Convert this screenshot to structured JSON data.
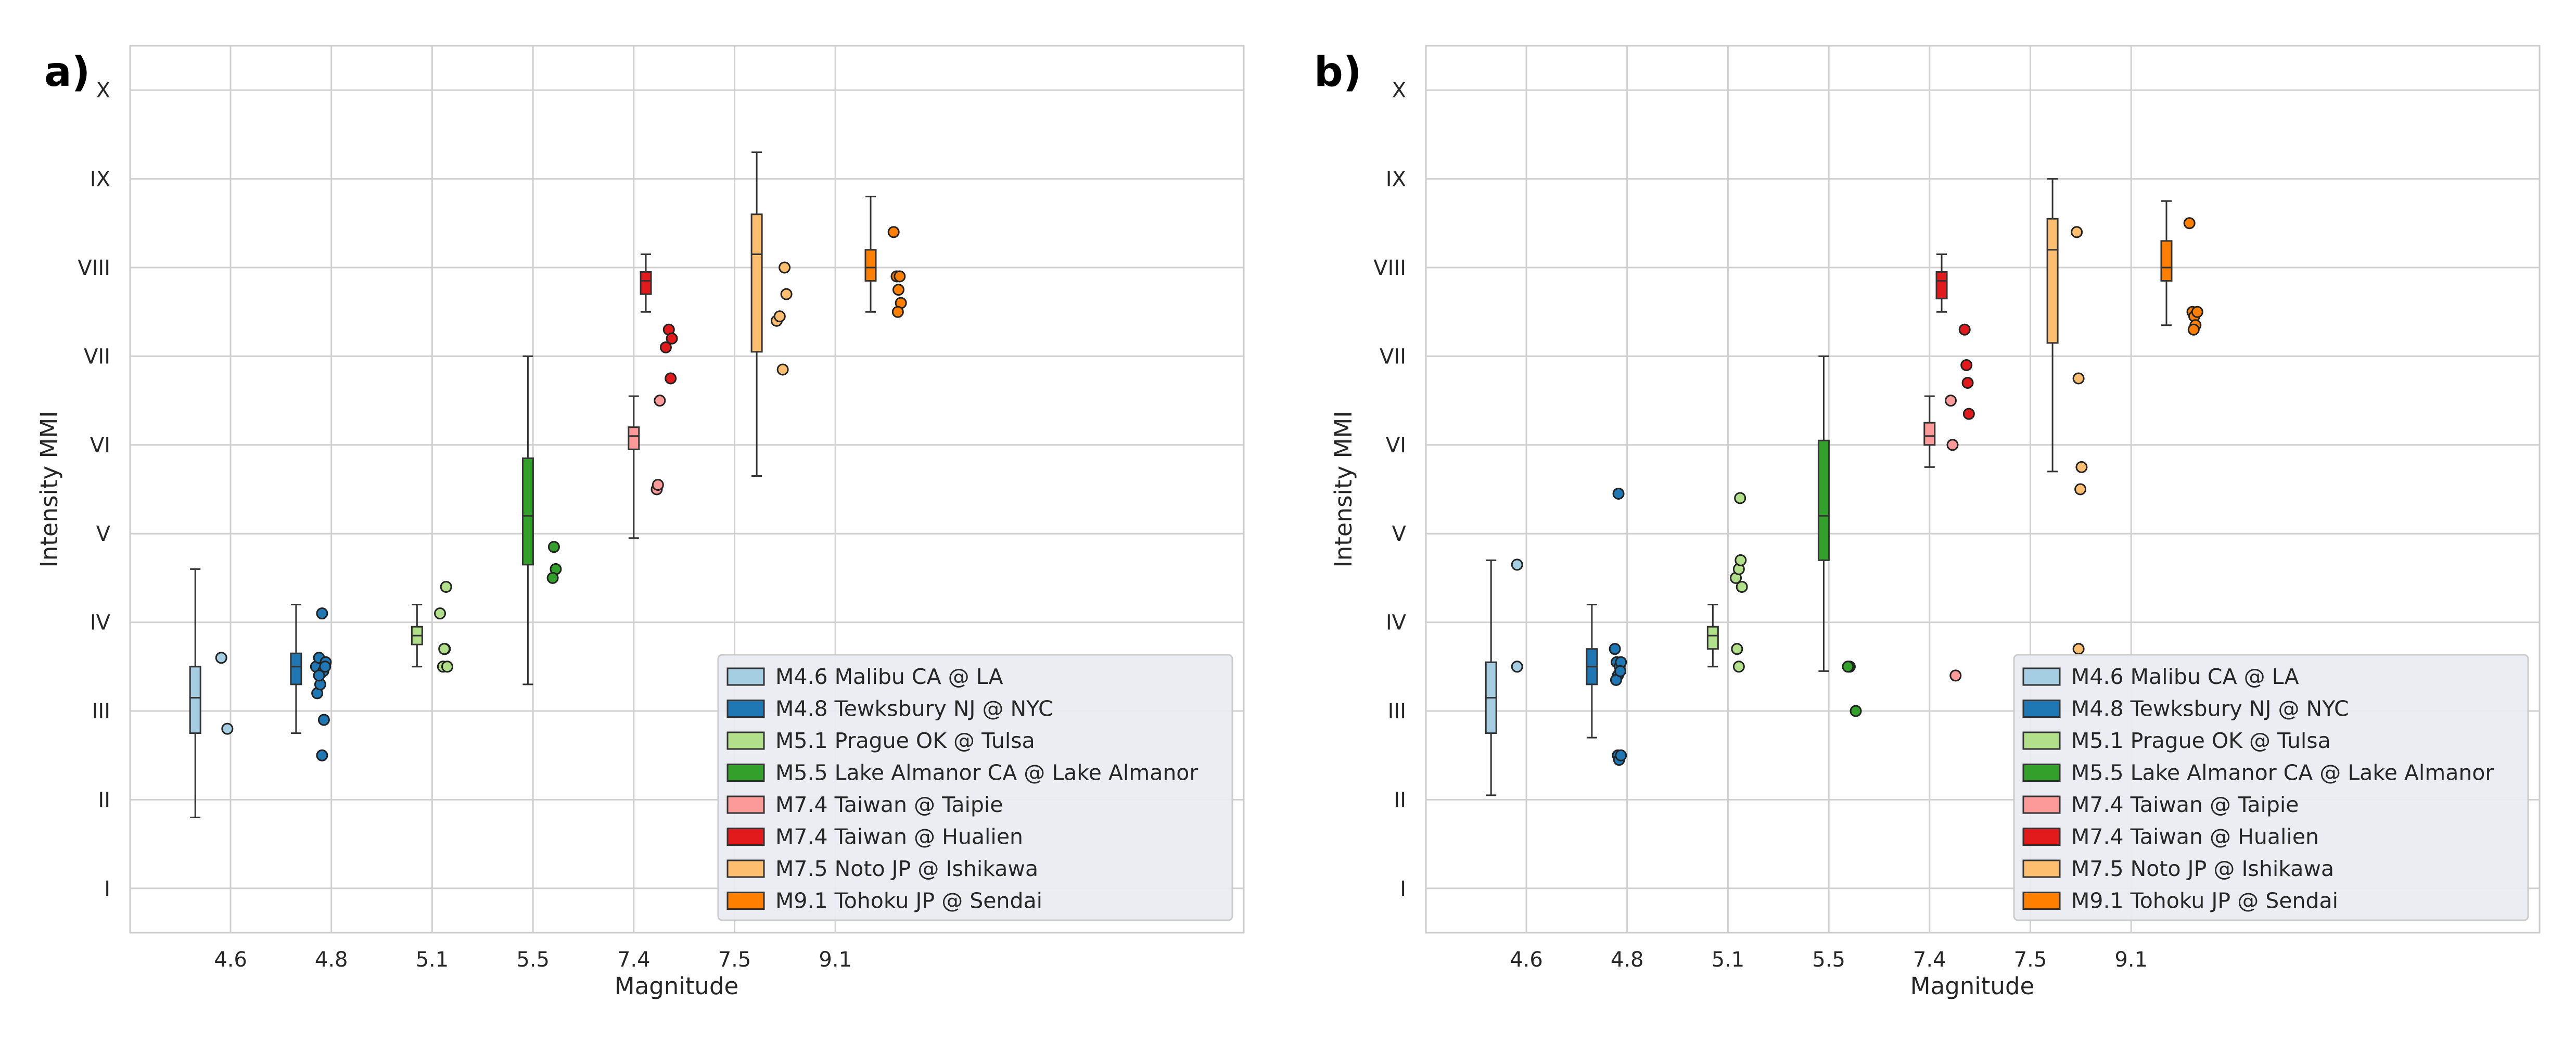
{
  "chart_data": [
    {
      "type": "box+strip",
      "panel_label": "a)",
      "xlabel": "Magnitude",
      "ylabel": "Intensity MMI",
      "categories": [
        "4.6",
        "4.8",
        "5.1",
        "5.5",
        "7.4",
        "7.5",
        "9.1"
      ],
      "ylim": [
        0.5,
        10.5
      ],
      "y_ticks": [
        "I",
        "II",
        "III",
        "IV",
        "V",
        "VI",
        "VII",
        "VIII",
        "IX",
        "X"
      ],
      "grid": true,
      "legend_position": "lower-right",
      "series": [
        {
          "name": "M4.6 Malibu CA @ LA",
          "color": "#a6cee3",
          "category": "4.6",
          "box": {
            "min": 1.8,
            "q1": 2.75,
            "median": 3.15,
            "q3": 3.5,
            "max": 4.6
          },
          "points": [
            [
              0.0,
              3.6
            ],
            [
              0.1,
              2.8
            ]
          ]
        },
        {
          "name": "M4.8 Tewksbury NJ @ NYC",
          "color": "#1f78b4",
          "category": "4.8",
          "box": {
            "min": 2.75,
            "q1": 3.3,
            "median": 3.5,
            "q3": 3.65,
            "max": 4.2
          },
          "points": [
            [
              -0.1,
              3.5
            ],
            [
              -0.05,
              3.6
            ],
            [
              -0.08,
              3.2
            ],
            [
              -0.03,
              3.3
            ],
            [
              0.0,
              4.1
            ],
            [
              0.02,
              3.45
            ],
            [
              0.06,
              3.55
            ],
            [
              0.03,
              2.9
            ],
            [
              0.0,
              2.5
            ],
            [
              -0.05,
              3.4
            ],
            [
              0.05,
              3.5
            ]
          ]
        },
        {
          "name": "M5.1 Prague OK @ Tulsa",
          "color": "#b2df8a",
          "category": "5.1",
          "box": {
            "min": 3.5,
            "q1": 3.75,
            "median": 3.85,
            "q3": 3.95,
            "max": 4.2
          },
          "points": [
            [
              -0.05,
              4.1
            ],
            [
              0.0,
              3.5
            ],
            [
              0.03,
              3.7
            ],
            [
              0.05,
              4.4
            ],
            [
              0.07,
              3.5
            ],
            [
              0.02,
              3.7
            ]
          ]
        },
        {
          "name": "M5.5 Lake Almanor CA @ Lake Almanor",
          "color": "#33a02c",
          "category": "5.5",
          "box": {
            "min": 3.3,
            "q1": 4.65,
            "median": 5.2,
            "q3": 5.85,
            "max": 7.0
          },
          "points": [
            [
              0.0,
              4.85
            ],
            [
              0.03,
              4.6
            ],
            [
              -0.02,
              4.5
            ]
          ]
        },
        {
          "name": "M7.4 Taiwan @ Taipie",
          "color": "#fb9a99",
          "category": "7.4",
          "box": {
            "min": 4.95,
            "q1": 5.95,
            "median": 6.1,
            "q3": 6.2,
            "max": 6.55
          },
          "points": [
            [
              -0.05,
              5.5
            ],
            [
              0.0,
              6.5
            ],
            [
              -0.03,
              5.55
            ]
          ]
        },
        {
          "name": "M7.4 Taiwan @ Hualien",
          "color": "#e31a1c",
          "category": "7.4",
          "box": {
            "min": 7.5,
            "q1": 7.7,
            "median": 7.85,
            "q3": 7.95,
            "max": 8.15
          },
          "points": [
            [
              -0.1,
              7.1
            ],
            [
              -0.05,
              7.3
            ],
            [
              -0.02,
              6.75
            ],
            [
              0.0,
              7.2
            ]
          ]
        },
        {
          "name": "M7.5 Noto JP @ Ishikawa",
          "color": "#fdbf6f",
          "category": "7.5",
          "box": {
            "min": 5.65,
            "q1": 7.05,
            "median": 8.15,
            "q3": 8.6,
            "max": 9.3
          },
          "points": [
            [
              -0.1,
              7.4
            ],
            [
              -0.05,
              7.45
            ],
            [
              0.0,
              6.85
            ],
            [
              0.03,
              8.0
            ],
            [
              0.06,
              7.7
            ]
          ]
        },
        {
          "name": "M9.1 Tohoku JP @ Sendai",
          "color": "#ff7f00",
          "category": "9.1",
          "box": {
            "min": 7.5,
            "q1": 7.85,
            "median": 8.0,
            "q3": 8.2,
            "max": 8.8
          },
          "points": [
            [
              -0.05,
              8.4
            ],
            [
              0.0,
              7.9
            ],
            [
              0.03,
              7.75
            ],
            [
              0.07,
              7.6
            ],
            [
              0.02,
              7.5
            ],
            [
              0.05,
              7.9
            ]
          ]
        }
      ]
    },
    {
      "type": "box+strip",
      "panel_label": "b)",
      "xlabel": "Magnitude",
      "ylabel": "Intensity MMI",
      "categories": [
        "4.6",
        "4.8",
        "5.1",
        "5.5",
        "7.4",
        "7.5",
        "9.1"
      ],
      "ylim": [
        0.5,
        10.5
      ],
      "y_ticks": [
        "I",
        "II",
        "III",
        "IV",
        "V",
        "VI",
        "VII",
        "VIII",
        "IX",
        "X"
      ],
      "grid": true,
      "legend_position": "lower-right",
      "series": [
        {
          "name": "M4.6 Malibu CA @ LA",
          "color": "#a6cee3",
          "category": "4.6",
          "box": {
            "min": 2.05,
            "q1": 2.75,
            "median": 3.15,
            "q3": 3.55,
            "max": 4.7
          },
          "points": [
            [
              0.0,
              4.65
            ],
            [
              0.0,
              3.5
            ]
          ]
        },
        {
          "name": "M4.8 Tewksbury NJ @ NYC",
          "color": "#1f78b4",
          "category": "4.8",
          "box": {
            "min": 2.7,
            "q1": 3.3,
            "median": 3.5,
            "q3": 3.7,
            "max": 4.2
          },
          "points": [
            [
              -0.05,
              3.7
            ],
            [
              -0.02,
              3.55
            ],
            [
              0.0,
              3.4
            ],
            [
              0.03,
              3.5
            ],
            [
              0.05,
              3.55
            ],
            [
              0.01,
              5.45
            ],
            [
              0.0,
              2.5
            ],
            [
              0.02,
              2.45
            ],
            [
              0.05,
              2.5
            ],
            [
              -0.03,
              3.35
            ],
            [
              0.04,
              3.45
            ]
          ]
        },
        {
          "name": "M5.1 Prague OK @ Tulsa",
          "color": "#b2df8a",
          "category": "5.1",
          "box": {
            "min": 3.5,
            "q1": 3.7,
            "median": 3.85,
            "q3": 3.95,
            "max": 4.2
          },
          "points": [
            [
              -0.05,
              4.5
            ],
            [
              0.0,
              4.6
            ],
            [
              0.03,
              4.7
            ],
            [
              0.05,
              4.4
            ],
            [
              0.02,
              5.4
            ],
            [
              -0.03,
              3.7
            ],
            [
              0.0,
              3.5
            ]
          ]
        },
        {
          "name": "M5.5 Lake Almanor CA @ Lake Almanor",
          "color": "#33a02c",
          "category": "5.5",
          "box": {
            "min": 3.45,
            "q1": 4.7,
            "median": 5.2,
            "q3": 6.05,
            "max": 7.0
          },
          "points": [
            [
              0.0,
              3.5
            ],
            [
              -0.03,
              3.5
            ],
            [
              0.1,
              3.0
            ]
          ]
        },
        {
          "name": "M7.4 Taiwan @ Taipie",
          "color": "#fb9a99",
          "category": "7.4",
          "box": {
            "min": 5.75,
            "q1": 6.0,
            "median": 6.1,
            "q3": 6.25,
            "max": 6.55
          },
          "points": [
            [
              -0.08,
              6.5
            ],
            [
              -0.05,
              6.0
            ],
            [
              0.0,
              3.4
            ]
          ]
        },
        {
          "name": "M7.4 Taiwan @ Hualien",
          "color": "#e31a1c",
          "category": "7.4",
          "box": {
            "min": 7.5,
            "q1": 7.65,
            "median": 7.85,
            "q3": 7.95,
            "max": 8.15
          },
          "points": [
            [
              -0.05,
              7.3
            ],
            [
              -0.02,
              6.9
            ],
            [
              0.0,
              6.7
            ],
            [
              0.02,
              6.35
            ]
          ]
        },
        {
          "name": "M7.5 Noto JP @ Ishikawa",
          "color": "#fdbf6f",
          "category": "7.5",
          "box": {
            "min": 5.7,
            "q1": 7.15,
            "median": 8.2,
            "q3": 8.55,
            "max": 9.0
          },
          "points": [
            [
              -0.03,
              8.4
            ],
            [
              0.0,
              6.75
            ],
            [
              0.05,
              5.75
            ],
            [
              0.03,
              5.5
            ],
            [
              0.0,
              3.7
            ]
          ]
        },
        {
          "name": "M9.1 Tohoku JP @ Sendai",
          "color": "#ff7f00",
          "category": "9.1",
          "box": {
            "min": 7.35,
            "q1": 7.85,
            "median": 8.0,
            "q3": 8.3,
            "max": 8.75
          },
          "points": [
            [
              -0.05,
              8.5
            ],
            [
              0.0,
              7.5
            ],
            [
              0.03,
              7.45
            ],
            [
              0.05,
              7.35
            ],
            [
              0.02,
              7.3
            ],
            [
              0.08,
              7.5
            ]
          ]
        }
      ]
    }
  ]
}
